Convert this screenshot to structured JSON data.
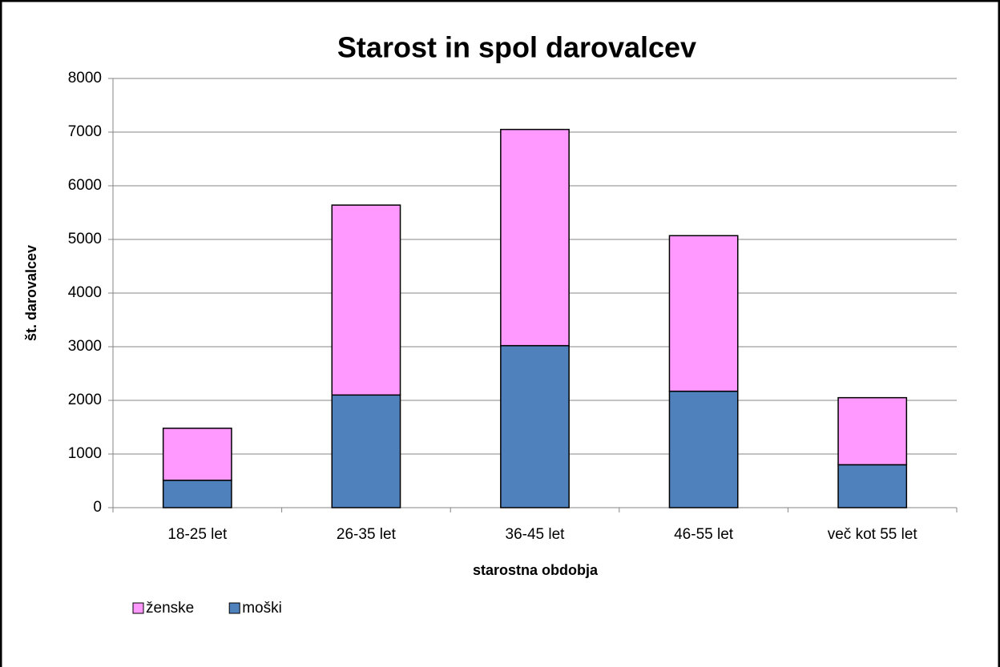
{
  "chart_data": {
    "type": "stacked_bar",
    "title": "Starost in spol darovalcev",
    "x_label": "starostna obdobja",
    "y_label": "št. darovalcev",
    "categories": [
      "18-25 let",
      "26-35 let",
      "36-45 let",
      "46-55 let",
      "več kot 55 let"
    ],
    "series": [
      {
        "name": "moški",
        "color": "#4f81bd",
        "values": [
          510,
          2100,
          3020,
          2170,
          800
        ]
      },
      {
        "name": "ženske",
        "color": "#ff99ff",
        "values": [
          970,
          3540,
          4030,
          2900,
          1250
        ]
      }
    ],
    "ylim": [
      0,
      8000
    ],
    "yticks": [
      0,
      1000,
      2000,
      3000,
      4000,
      5000,
      6000,
      7000,
      8000
    ],
    "grid": true,
    "legend": "bottom-left"
  }
}
